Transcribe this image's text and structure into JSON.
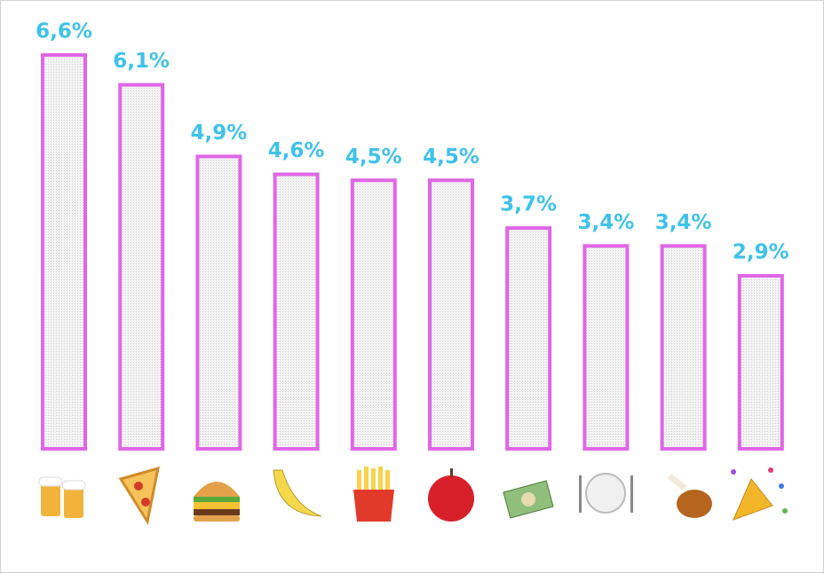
{
  "chart_data": {
    "type": "bar",
    "values": [
      6.6,
      6.1,
      4.9,
      4.6,
      4.5,
      4.5,
      3.7,
      3.4,
      3.4,
      2.9
    ],
    "value_labels": [
      "6,6%",
      "6,1%",
      "4,9%",
      "4,6%",
      "4,5%",
      "4,5%",
      "3,7%",
      "3,4%",
      "3,4%",
      "2,9%"
    ],
    "color": "#e066e6",
    "label_color": "#3ec2ea"
  }
}
